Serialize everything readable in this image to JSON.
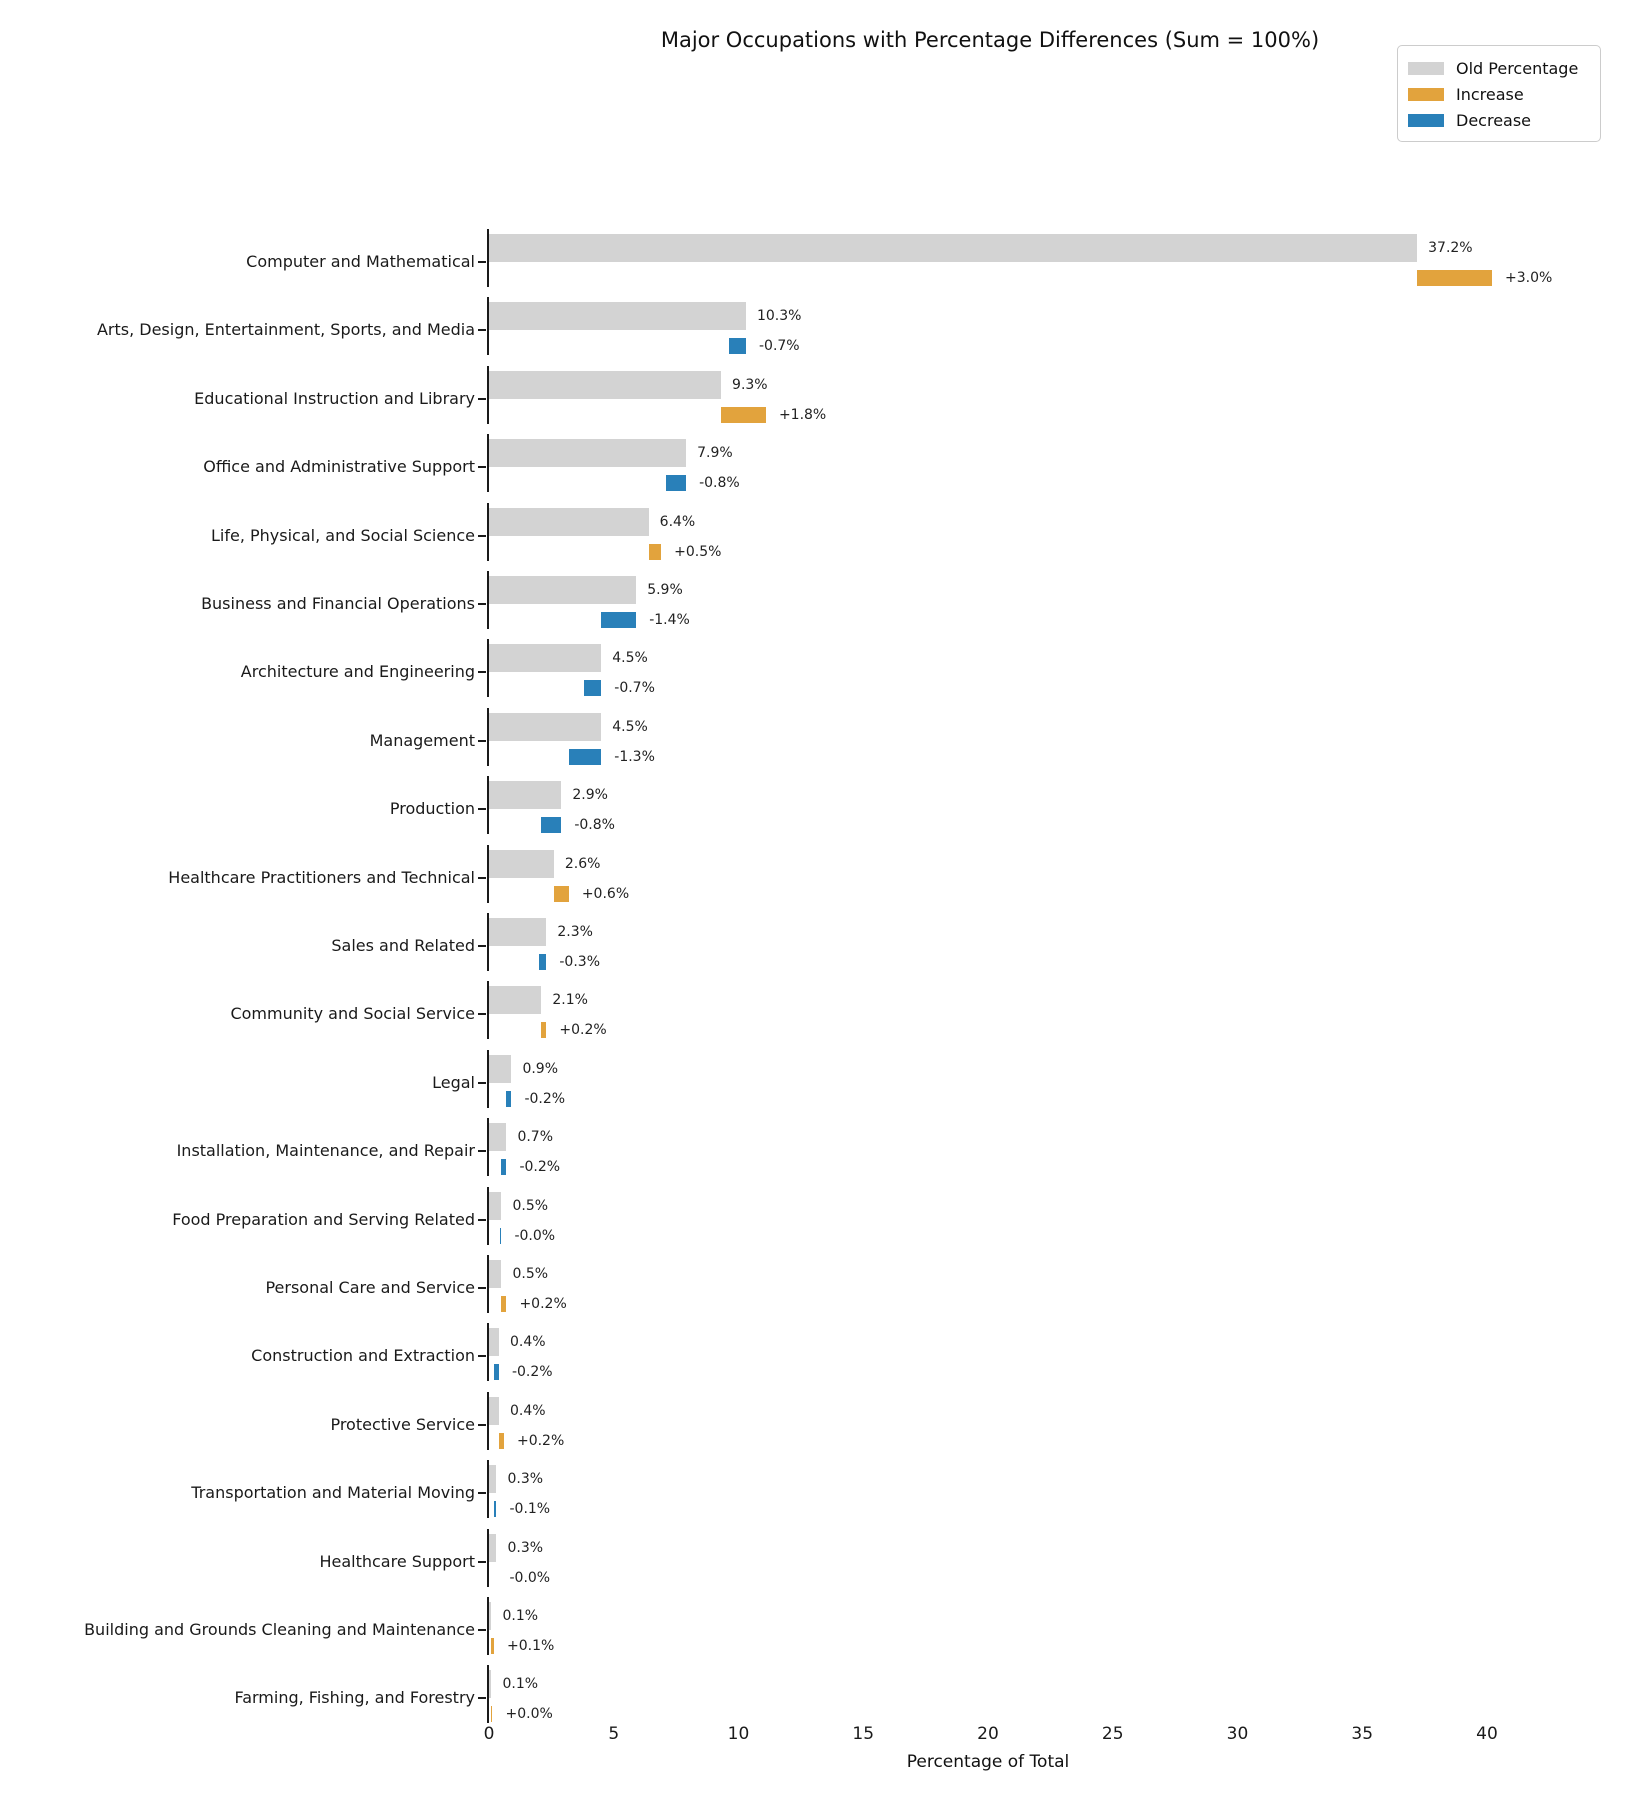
{
  "chart_data": {
    "type": "bar",
    "orientation": "horizontal",
    "title": "Major Occupations with Percentage Differences (Sum = 100%)",
    "xlabel": "Percentage of Total",
    "xticks": [
      0,
      5,
      10,
      15,
      20,
      25,
      30,
      35,
      40
    ],
    "xlim": [
      0,
      45
    ],
    "grid": false,
    "legend": {
      "position": "upper right",
      "entries": [
        {
          "label": "Old Percentage",
          "color": "#d3d3d3"
        },
        {
          "label": "Increase",
          "color": "#e2a33d"
        },
        {
          "label": "Decrease",
          "color": "#2980b9"
        }
      ]
    },
    "colors": {
      "old": "#d3d3d3",
      "increase": "#e2a33d",
      "decrease": "#2980b9"
    },
    "rows": [
      {
        "category": "Computer and Mathematical",
        "old": 37.2,
        "old_label": "37.2%",
        "delta": 3.0,
        "delta_label": "+3.0%",
        "direction": "increase"
      },
      {
        "category": "Arts, Design, Entertainment, Sports, and Media",
        "old": 10.3,
        "old_label": "10.3%",
        "delta": -0.7,
        "delta_label": "-0.7%",
        "direction": "decrease"
      },
      {
        "category": "Educational Instruction and Library",
        "old": 9.3,
        "old_label": "9.3%",
        "delta": 1.8,
        "delta_label": "+1.8%",
        "direction": "increase"
      },
      {
        "category": "Office and Administrative Support",
        "old": 7.9,
        "old_label": "7.9%",
        "delta": -0.8,
        "delta_label": "-0.8%",
        "direction": "decrease"
      },
      {
        "category": "Life, Physical, and Social Science",
        "old": 6.4,
        "old_label": "6.4%",
        "delta": 0.5,
        "delta_label": "+0.5%",
        "direction": "increase"
      },
      {
        "category": "Business and Financial Operations",
        "old": 5.9,
        "old_label": "5.9%",
        "delta": -1.4,
        "delta_label": "-1.4%",
        "direction": "decrease"
      },
      {
        "category": "Architecture and Engineering",
        "old": 4.5,
        "old_label": "4.5%",
        "delta": -0.7,
        "delta_label": "-0.7%",
        "direction": "decrease"
      },
      {
        "category": "Management",
        "old": 4.5,
        "old_label": "4.5%",
        "delta": -1.3,
        "delta_label": "-1.3%",
        "direction": "decrease"
      },
      {
        "category": "Production",
        "old": 2.9,
        "old_label": "2.9%",
        "delta": -0.8,
        "delta_label": "-0.8%",
        "direction": "decrease"
      },
      {
        "category": "Healthcare Practitioners and Technical",
        "old": 2.6,
        "old_label": "2.6%",
        "delta": 0.6,
        "delta_label": "+0.6%",
        "direction": "increase"
      },
      {
        "category": "Sales and Related",
        "old": 2.3,
        "old_label": "2.3%",
        "delta": -0.3,
        "delta_label": "-0.3%",
        "direction": "decrease"
      },
      {
        "category": "Community and Social Service",
        "old": 2.1,
        "old_label": "2.1%",
        "delta": 0.2,
        "delta_label": "+0.2%",
        "direction": "increase"
      },
      {
        "category": "Legal",
        "old": 0.9,
        "old_label": "0.9%",
        "delta": -0.2,
        "delta_label": "-0.2%",
        "direction": "decrease"
      },
      {
        "category": "Installation, Maintenance, and Repair",
        "old": 0.7,
        "old_label": "0.7%",
        "delta": -0.2,
        "delta_label": "-0.2%",
        "direction": "decrease"
      },
      {
        "category": "Food Preparation and Serving Related",
        "old": 0.5,
        "old_label": "0.5%",
        "delta": -0.04,
        "delta_label": "-0.0%",
        "direction": "decrease"
      },
      {
        "category": "Personal Care and Service",
        "old": 0.5,
        "old_label": "0.5%",
        "delta": 0.2,
        "delta_label": "+0.2%",
        "direction": "increase"
      },
      {
        "category": "Construction and Extraction",
        "old": 0.4,
        "old_label": "0.4%",
        "delta": -0.2,
        "delta_label": "-0.2%",
        "direction": "decrease"
      },
      {
        "category": "Protective Service",
        "old": 0.4,
        "old_label": "0.4%",
        "delta": 0.2,
        "delta_label": "+0.2%",
        "direction": "increase"
      },
      {
        "category": "Transportation and Material Moving",
        "old": 0.3,
        "old_label": "0.3%",
        "delta": -0.1,
        "delta_label": "-0.1%",
        "direction": "decrease"
      },
      {
        "category": "Healthcare Support",
        "old": 0.3,
        "old_label": "0.3%",
        "delta": 0.0,
        "delta_label": "-0.0%",
        "direction": "decrease"
      },
      {
        "category": "Building and Grounds Cleaning and Maintenance",
        "old": 0.1,
        "old_label": "0.1%",
        "delta": 0.1,
        "delta_label": "+0.1%",
        "direction": "increase"
      },
      {
        "category": "Farming, Fishing, and Forestry",
        "old": 0.1,
        "old_label": "0.1%",
        "delta": 0.04,
        "delta_label": "+0.0%",
        "direction": "increase"
      }
    ]
  }
}
